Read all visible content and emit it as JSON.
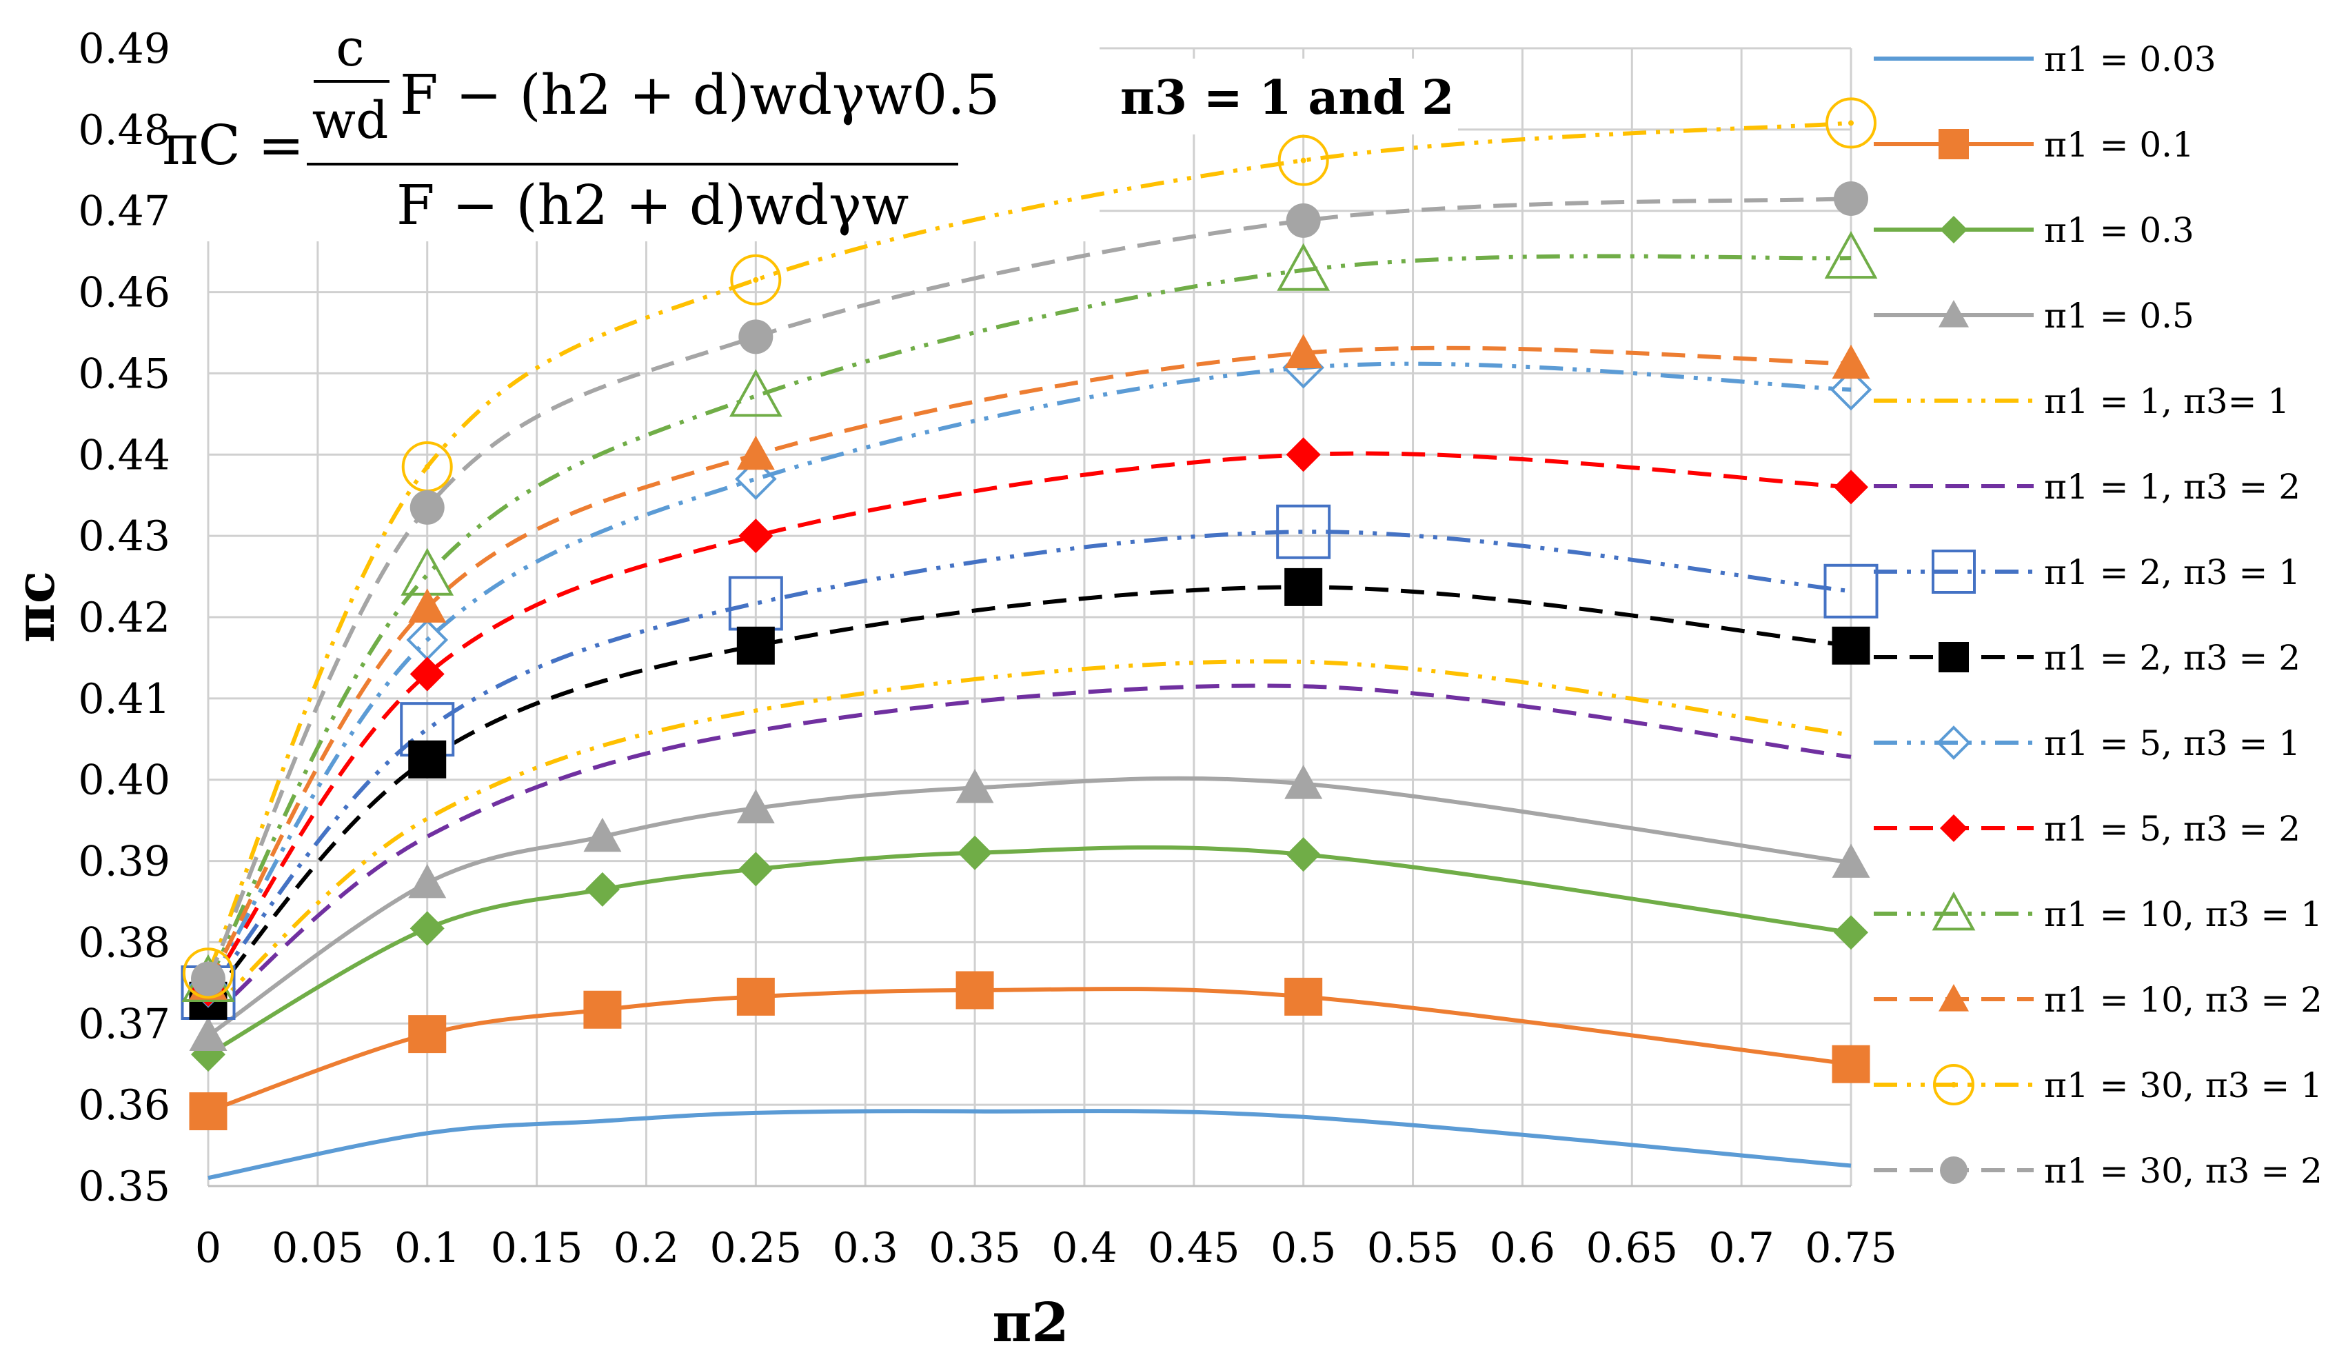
{
  "chart_data": {
    "type": "line",
    "title": "",
    "xlabel": "π2",
    "ylabel": "πc",
    "xlim": [
      0,
      0.75
    ],
    "ylim": [
      0.35,
      0.49
    ],
    "grid": true,
    "legend_position": "right",
    "x_ticks": [
      "0",
      "0.05",
      "0.1",
      "0.15",
      "0.2",
      "0.25",
      "0.3",
      "0.35",
      "0.4",
      "0.45",
      "0.5",
      "0.55",
      "0.6",
      "0.65",
      "0.7",
      "0.75"
    ],
    "y_ticks": [
      "0.35",
      "0.36",
      "0.37",
      "0.38",
      "0.39",
      "0.40",
      "0.41",
      "0.42",
      "0.43",
      "0.44",
      "0.45",
      "0.46",
      "0.47",
      "0.48",
      "0.49"
    ],
    "annotations": {
      "formula_lhs": "πC =",
      "formula_frac_num": "c",
      "formula_frac_den": "wd",
      "formula_numerator_rest": "F − (h2 + d)wdγw0.5",
      "formula_denominator": "F − (h2 + d)wdγw",
      "pi3_note": "π3 = 1 and 2"
    },
    "series": [
      {
        "name": "π1 = 0.03",
        "color": "#5B9BD5",
        "dash": "solid",
        "marker": "none",
        "x": [
          0,
          0.1,
          0.18,
          0.25,
          0.35,
          0.5,
          0.75
        ],
        "y": [
          0.351,
          0.3565,
          0.358,
          0.359,
          0.3592,
          0.3585,
          0.3525
        ]
      },
      {
        "name": "π1 = 0.1",
        "color": "#ED7D31",
        "dash": "solid",
        "marker": "square",
        "x": [
          0,
          0.1,
          0.18,
          0.25,
          0.35,
          0.5,
          0.75
        ],
        "y": [
          0.3592,
          0.3687,
          0.3717,
          0.3733,
          0.3741,
          0.3733,
          0.365
        ]
      },
      {
        "name": "π1 = 0.3",
        "color": "#70AD47",
        "dash": "solid",
        "marker": "diamond",
        "x": [
          0,
          0.1,
          0.18,
          0.25,
          0.35,
          0.5,
          0.75
        ],
        "y": [
          0.3662,
          0.3817,
          0.3865,
          0.389,
          0.391,
          0.3908,
          0.3812
        ]
      },
      {
        "name": "π1 = 0.5",
        "color": "#A5A5A5",
        "dash": "solid",
        "marker": "triangle",
        "x": [
          0,
          0.1,
          0.18,
          0.25,
          0.35,
          0.5,
          0.75
        ],
        "y": [
          0.3685,
          0.3873,
          0.393,
          0.3965,
          0.399,
          0.3995,
          0.3898
        ]
      },
      {
        "name": "π1 = 1, π3= 1",
        "color": "#FFC000",
        "dash": "dashdotdot",
        "marker": "none",
        "x": [
          0,
          0.1,
          0.25,
          0.5,
          0.75
        ],
        "y": [
          0.3712,
          0.3952,
          0.4085,
          0.4145,
          0.4055
        ]
      },
      {
        "name": "π1 = 1, π3 = 2",
        "color": "#7030A0",
        "dash": "dash",
        "marker": "none",
        "x": [
          0,
          0.1,
          0.25,
          0.5,
          0.75
        ],
        "y": [
          0.3705,
          0.393,
          0.406,
          0.4115,
          0.4028
        ]
      },
      {
        "name": "π1 = 2, π3 = 1",
        "color": "#4472C4",
        "dash": "dashdotdot",
        "marker": "square-open",
        "x": [
          0,
          0.1,
          0.25,
          0.5,
          0.75
        ],
        "y": [
          0.3738,
          0.4062,
          0.4217,
          0.4305,
          0.4232
        ]
      },
      {
        "name": "π1 = 2, π3 = 2",
        "color": "#000000",
        "dash": "dash",
        "marker": "square",
        "x": [
          0,
          0.1,
          0.25,
          0.5,
          0.75
        ],
        "y": [
          0.3728,
          0.4025,
          0.4165,
          0.4237,
          0.4165
        ]
      },
      {
        "name": "π1 = 5, π3 = 1",
        "color": "#5B9BD5",
        "dash": "dashdotdot",
        "marker": "diamond-open",
        "x": [
          0,
          0.1,
          0.25,
          0.5,
          0.75
        ],
        "y": [
          0.3745,
          0.4172,
          0.437,
          0.4507,
          0.448
        ]
      },
      {
        "name": "π1 = 5, π3 = 2",
        "color": "#FF0000",
        "dash": "dash",
        "marker": "diamond",
        "x": [
          0,
          0.1,
          0.25,
          0.5,
          0.75
        ],
        "y": [
          0.3742,
          0.413,
          0.43,
          0.44,
          0.436
        ]
      },
      {
        "name": "π1 = 10, π3 = 1",
        "color": "#70AD47",
        "dash": "dashdotdot",
        "marker": "triangle-open",
        "x": [
          0,
          0.1,
          0.25,
          0.5,
          0.75
        ],
        "y": [
          0.3752,
          0.4252,
          0.4472,
          0.4627,
          0.4642
        ]
      },
      {
        "name": "π1 = 10, π3 = 2",
        "color": "#ED7D31",
        "dash": "dash",
        "marker": "triangle",
        "x": [
          0,
          0.1,
          0.25,
          0.5,
          0.75
        ],
        "y": [
          0.3748,
          0.4212,
          0.44,
          0.4525,
          0.4512
        ]
      },
      {
        "name": "π1 = 30, π3 = 1",
        "color": "#FFC000",
        "dash": "dashdotdot",
        "marker": "circle-open",
        "x": [
          0,
          0.1,
          0.25,
          0.5,
          0.75
        ],
        "y": [
          0.3762,
          0.4385,
          0.4615,
          0.4762,
          0.4808
        ]
      },
      {
        "name": "π1 = 30, π3 = 2",
        "color": "#A5A5A5",
        "dash": "dash",
        "marker": "circle",
        "x": [
          0,
          0.1,
          0.25,
          0.5,
          0.75
        ],
        "y": [
          0.3755,
          0.4335,
          0.4545,
          0.4688,
          0.4715
        ]
      }
    ]
  }
}
